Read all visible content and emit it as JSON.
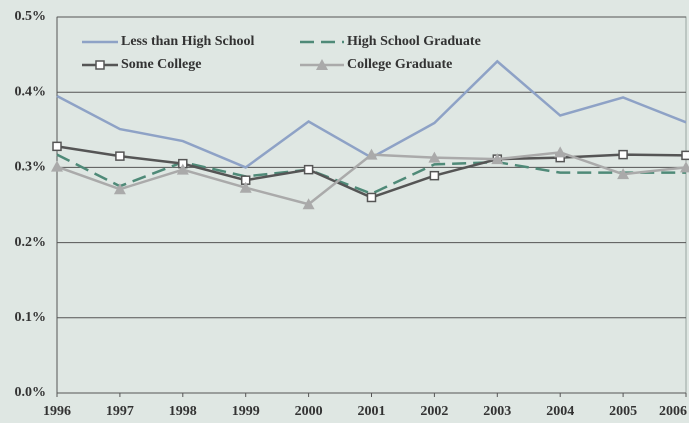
{
  "chart_data": {
    "type": "line",
    "x": [
      1996,
      1997,
      1998,
      1999,
      2000,
      2001,
      2002,
      2003,
      2004,
      2005,
      2006
    ],
    "xlim": [
      1996,
      2006
    ],
    "xticks": [
      1996,
      1997,
      1998,
      1999,
      2000,
      2001,
      2002,
      2003,
      2004,
      2005,
      2006
    ],
    "ylim": [
      0,
      0.5
    ],
    "yticks": [
      {
        "value": 0,
        "label": "0.0%"
      },
      {
        "value": 0.1,
        "label": "0.1%"
      },
      {
        "value": 0.2,
        "label": "0.2%"
      },
      {
        "value": 0.3,
        "label": "0.3%"
      },
      {
        "value": 0.4,
        "label": "0.4%"
      },
      {
        "value": 0.5,
        "label": "0.5%"
      }
    ],
    "grid": true,
    "legend": "top",
    "series": [
      {
        "name": "Less than High School",
        "color": "#8ea2c6",
        "dash": false,
        "marker": "none",
        "values": [
          0.395,
          0.351,
          0.335,
          0.3,
          0.361,
          0.313,
          0.359,
          0.441,
          0.369,
          0.393,
          0.36
        ]
      },
      {
        "name": "High School Graduate",
        "color": "#4f8a78",
        "dash": true,
        "marker": "none",
        "values": [
          0.317,
          0.275,
          0.307,
          0.288,
          0.297,
          0.265,
          0.304,
          0.307,
          0.293,
          0.293,
          0.293
        ]
      },
      {
        "name": "Some College",
        "color": "#555555",
        "dash": false,
        "marker": "square",
        "values": [
          0.328,
          0.315,
          0.305,
          0.283,
          0.297,
          0.26,
          0.289,
          0.311,
          0.313,
          0.317,
          0.316
        ]
      },
      {
        "name": "College Graduate",
        "color": "#aaaaaa",
        "dash": false,
        "marker": "triangle",
        "values": [
          0.301,
          0.271,
          0.297,
          0.273,
          0.251,
          0.317,
          0.313,
          0.311,
          0.32,
          0.291,
          0.3
        ]
      }
    ]
  }
}
